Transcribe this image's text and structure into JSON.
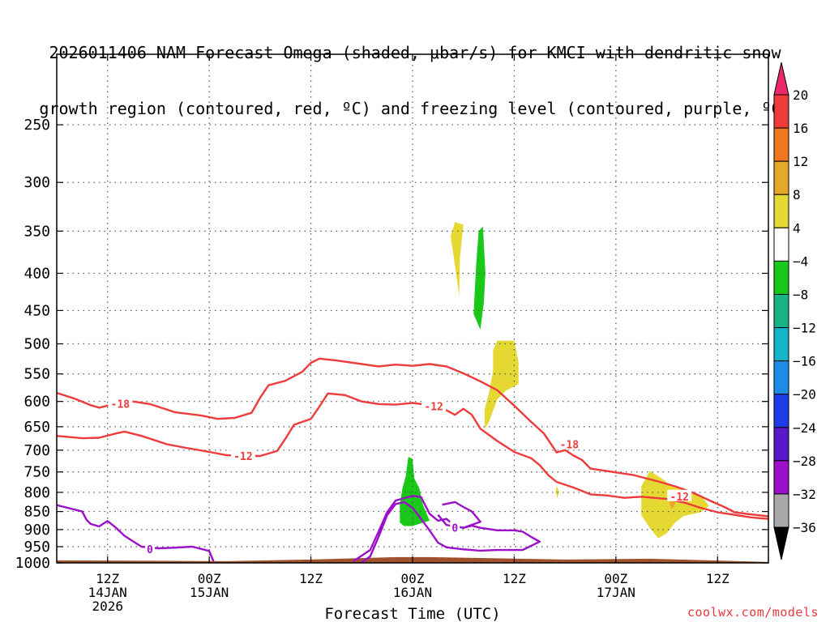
{
  "title": {
    "line1": "2026011406 NAM Forecast Omega (shaded, μbar/s) for KMCI with dendritic snow",
    "line2": "growth region (contoured, red, ºC) and freezing level (contoured, purple, ºC)"
  },
  "credit": "coolwx.com/models",
  "colors": {
    "temp_contour": "#ee3b3b",
    "freezing_contour": "#9b10c8",
    "ground": "#a0522d",
    "grid": "#555555"
  },
  "chart_data": {
    "type": "heatmap",
    "title": "2026011406 NAM Forecast Omega (shaded, μbar/s) for KMCI with dendritic snow growth region (contoured, red, ºC) and freezing level (contoured, purple, ºC)",
    "xlabel": "Forecast Time (UTC)",
    "ylabel": "",
    "x_range_hours": [
      0,
      84
    ],
    "y_scale": "log",
    "y_range_hPa": [
      1000,
      200
    ],
    "x_ticks": [
      {
        "hour": 6,
        "labels": [
          "12Z",
          "14JAN",
          "2026"
        ]
      },
      {
        "hour": 18,
        "labels": [
          "00Z",
          "15JAN"
        ]
      },
      {
        "hour": 30,
        "labels": [
          "12Z"
        ]
      },
      {
        "hour": 42,
        "labels": [
          "00Z",
          "16JAN"
        ]
      },
      {
        "hour": 54,
        "labels": [
          "12Z"
        ]
      },
      {
        "hour": 66,
        "labels": [
          "00Z",
          "17JAN"
        ]
      },
      {
        "hour": 78,
        "labels": [
          "12Z"
        ]
      }
    ],
    "y_ticks": [
      250,
      300,
      350,
      400,
      450,
      500,
      550,
      600,
      650,
      700,
      750,
      800,
      850,
      900,
      950,
      1000
    ],
    "grid": true,
    "colorbar": {
      "labels": [
        "20",
        "16",
        "12",
        "8",
        "4",
        "−4",
        "−8",
        "−12",
        "−16",
        "−20",
        "−24",
        "−28",
        "−32",
        "−36"
      ],
      "colors": [
        "#e8286a",
        "#ee3b3b",
        "#ee7722",
        "#e6a828",
        "#e6d832",
        "#ffffff",
        "#19c819",
        "#16b487",
        "#16b4c8",
        "#1e8ce6",
        "#1e3ce6",
        "#5a19c8",
        "#9b10c8",
        "#a8a8a8",
        "#000000"
      ]
    },
    "temp_contours": [
      {
        "label": "-18",
        "label_at": [
          7.5,
          604
        ],
        "points": [
          [
            0,
            584
          ],
          [
            2,
            594
          ],
          [
            4,
            607
          ],
          [
            5,
            612
          ],
          [
            7,
            604
          ],
          [
            9,
            600
          ],
          [
            11,
            605
          ],
          [
            14,
            621
          ],
          [
            17,
            627
          ],
          [
            19,
            634
          ],
          [
            21,
            632
          ],
          [
            23,
            622
          ],
          [
            24,
            593
          ],
          [
            25,
            570
          ],
          [
            27,
            562
          ],
          [
            29,
            546
          ],
          [
            30,
            531
          ],
          [
            31,
            524
          ],
          [
            33,
            527
          ],
          [
            36,
            533
          ],
          [
            38,
            537
          ],
          [
            40,
            534
          ],
          [
            42,
            536
          ],
          [
            44,
            533
          ],
          [
            46,
            537
          ],
          [
            48,
            549
          ],
          [
            50,
            563
          ],
          [
            52,
            579
          ],
          [
            54,
            608
          ],
          [
            56,
            640
          ],
          [
            57.5,
            664
          ],
          [
            59,
            705
          ],
          [
            60,
            700
          ],
          [
            61,
            712
          ],
          [
            62,
            722
          ],
          [
            63,
            742
          ],
          [
            65,
            748
          ],
          [
            68,
            757
          ],
          [
            71,
            773
          ],
          [
            73,
            785
          ],
          [
            75,
            800
          ],
          [
            77,
            820
          ],
          [
            79,
            840
          ],
          [
            80,
            852
          ],
          [
            82,
            858
          ],
          [
            84,
            863
          ]
        ]
      },
      {
        "label": "-12",
        "label_at": [
          22,
          713
        ],
        "points": [
          [
            0,
            669
          ],
          [
            3,
            674
          ],
          [
            5,
            673
          ],
          [
            7,
            664
          ],
          [
            8,
            660
          ],
          [
            10,
            669
          ],
          [
            13,
            687
          ],
          [
            15,
            694
          ],
          [
            18,
            704
          ],
          [
            20,
            711
          ],
          [
            22,
            713
          ],
          [
            24,
            713
          ],
          [
            26,
            702
          ],
          [
            27,
            675
          ],
          [
            28,
            646
          ],
          [
            30,
            634
          ],
          [
            31,
            610
          ],
          [
            32,
            585
          ],
          [
            34,
            588
          ],
          [
            36,
            600
          ],
          [
            38,
            605
          ],
          [
            40,
            606
          ],
          [
            42,
            603
          ],
          [
            44,
            607
          ],
          [
            46,
            617
          ],
          [
            47,
            626
          ],
          [
            48,
            614
          ],
          [
            49,
            626
          ],
          [
            50,
            654
          ],
          [
            52,
            680
          ],
          [
            54,
            704
          ],
          [
            56,
            718
          ],
          [
            57,
            734
          ],
          [
            58,
            757
          ],
          [
            59,
            774
          ],
          [
            61,
            788
          ],
          [
            63,
            805
          ],
          [
            65,
            808
          ],
          [
            67,
            814
          ],
          [
            69,
            811
          ],
          [
            72,
            817
          ],
          [
            74,
            826
          ],
          [
            76,
            840
          ],
          [
            78,
            852
          ],
          [
            80,
            859
          ],
          [
            82,
            866
          ],
          [
            84,
            870
          ]
        ]
      },
      {
        "label": "-12",
        "label_at": [
          44.5,
          609
        ],
        "points": []
      },
      {
        "label": "-12",
        "label_at": [
          73.5,
          810
        ],
        "points": []
      },
      {
        "label": "-18",
        "label_at": [
          60.5,
          687
        ],
        "points": []
      }
    ],
    "freezing_contours": [
      {
        "label": "0",
        "label_at": [
          11,
          957
        ],
        "points": [
          [
            0,
            833
          ],
          [
            3,
            850
          ],
          [
            3.5,
            872
          ],
          [
            4,
            884
          ],
          [
            5,
            891
          ],
          [
            6,
            876
          ],
          [
            7,
            895
          ],
          [
            8,
            918
          ],
          [
            10,
            950
          ],
          [
            12,
            955
          ],
          [
            14,
            953
          ],
          [
            16,
            950
          ],
          [
            18,
            963
          ],
          [
            18.5,
            995
          ]
        ]
      },
      {
        "label": "0",
        "label_at": [
          47,
          895
        ],
        "points": [
          [
            35,
            995
          ],
          [
            37,
            960
          ],
          [
            38,
            905
          ],
          [
            39,
            852
          ],
          [
            40,
            821
          ],
          [
            42,
            809
          ],
          [
            43,
            812
          ],
          [
            44,
            856
          ],
          [
            45,
            875
          ],
          [
            46,
            870
          ],
          [
            47,
            890
          ],
          [
            48,
            895
          ],
          [
            49,
            889
          ],
          [
            50,
            895
          ],
          [
            52,
            902
          ],
          [
            54,
            902
          ],
          [
            55,
            906
          ],
          [
            56,
            921
          ],
          [
            57,
            935
          ],
          [
            55,
            960
          ],
          [
            52,
            960
          ],
          [
            50,
            962
          ],
          [
            48,
            958
          ],
          [
            46,
            952
          ],
          [
            45,
            938
          ],
          [
            44,
            902
          ],
          [
            43,
            870
          ],
          [
            42,
            840
          ],
          [
            41,
            825
          ],
          [
            40,
            830
          ],
          [
            39,
            860
          ],
          [
            38,
            920
          ],
          [
            37,
            980
          ],
          [
            36,
            998
          ]
        ]
      },
      {
        "label": "0",
        "label_at": [
          46.5,
          910
        ],
        "points": [
          [
            45.5,
            832
          ],
          [
            47,
            825
          ],
          [
            48,
            838
          ],
          [
            49,
            850
          ],
          [
            50,
            878
          ],
          [
            48,
            895
          ],
          [
            46,
            887
          ],
          [
            45,
            859
          ]
        ]
      }
    ],
    "omega_shades": [
      {
        "level": 4,
        "color": "#e6d832",
        "points": [
          [
            46.5,
            356
          ],
          [
            47,
            340
          ],
          [
            48,
            343
          ],
          [
            47.6,
            380
          ],
          [
            47.5,
            430
          ],
          [
            47,
            390
          ]
        ]
      },
      {
        "level": -8,
        "color": "#19c819",
        "points": [
          [
            49.2,
            455
          ],
          [
            49.5,
            390
          ],
          [
            49.8,
            350
          ],
          [
            50.3,
            345
          ],
          [
            50.6,
            400
          ],
          [
            50.4,
            440
          ],
          [
            50,
            478
          ]
        ]
      },
      {
        "level": 4,
        "color": "#e6d832",
        "points": [
          [
            50.5,
            655
          ],
          [
            50.5,
            615
          ],
          [
            51,
            585
          ],
          [
            51.5,
            545
          ],
          [
            51.5,
            510
          ],
          [
            52,
            495
          ],
          [
            54,
            495
          ],
          [
            54.5,
            530
          ],
          [
            54.5,
            568
          ],
          [
            53,
            580
          ],
          [
            52,
            596
          ],
          [
            51,
            640
          ]
        ]
      },
      {
        "level": -8,
        "color": "#19c819",
        "points": [
          [
            40.5,
            880
          ],
          [
            40.5,
            830
          ],
          [
            40.8,
            790
          ],
          [
            41.2,
            760
          ],
          [
            41.5,
            715
          ],
          [
            42,
            720
          ],
          [
            42.2,
            765
          ],
          [
            42.8,
            790
          ],
          [
            43.2,
            830
          ],
          [
            44,
            875
          ],
          [
            42,
            890
          ],
          [
            41,
            890
          ]
        ]
      },
      {
        "level": 4,
        "color": "#e6d832",
        "points": [
          [
            58.9,
            798
          ],
          [
            59,
            785
          ],
          [
            59.3,
            798
          ],
          [
            59.1,
            815
          ]
        ]
      },
      {
        "level": 4,
        "color": "#e6d832",
        "points": [
          [
            69,
            785
          ],
          [
            70,
            748
          ],
          [
            71,
            760
          ],
          [
            72,
            775
          ],
          [
            73,
            787
          ],
          [
            75,
            798
          ],
          [
            76,
            808
          ],
          [
            77,
            835
          ],
          [
            76,
            852
          ],
          [
            74,
            862
          ],
          [
            73,
            880
          ],
          [
            72,
            910
          ],
          [
            71,
            925
          ],
          [
            70,
            895
          ],
          [
            69,
            860
          ],
          [
            69,
            820
          ]
        ]
      },
      {
        "level": 8,
        "color": "#e6a828",
        "points": [
          [
            72.2,
            820
          ],
          [
            72.6,
            810
          ],
          [
            73,
            830
          ],
          [
            72.6,
            845
          ]
        ]
      }
    ],
    "ground": {
      "top_hPa": 987,
      "color": "#a0522d"
    }
  }
}
